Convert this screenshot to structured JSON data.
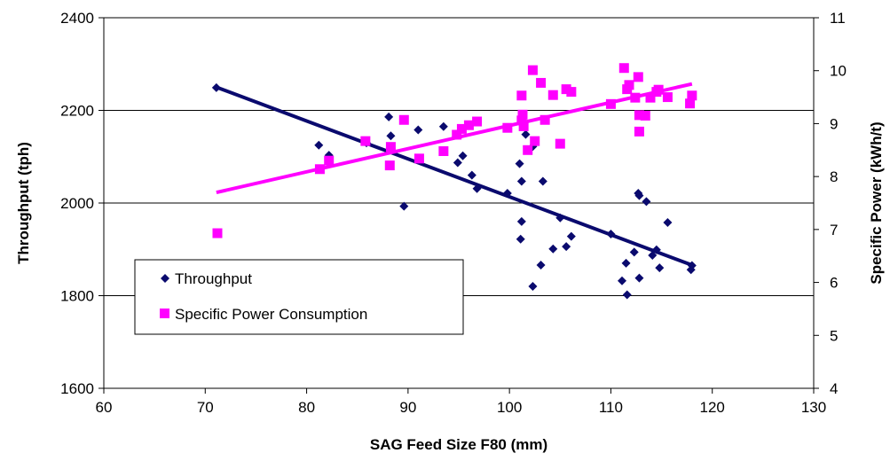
{
  "chart_data": {
    "type": "scatter",
    "title": "",
    "xlabel": "SAG Feed Size F80 (mm)",
    "ylabel": "Throughput (tph)",
    "y2label": "Specific Power (kWh/t)",
    "xlim": [
      60,
      130
    ],
    "ylim": [
      1600,
      2400
    ],
    "y2lim": [
      4,
      11
    ],
    "x_ticks": [
      "60",
      "70",
      "80",
      "90",
      "100",
      "110",
      "120",
      "130"
    ],
    "y_ticks": [
      "1600",
      "1800",
      "2000",
      "2200",
      "2400"
    ],
    "y2_ticks": [
      "4",
      "5",
      "6",
      "7",
      "8",
      "9",
      "10",
      "11"
    ],
    "grid": "horizontal major gridlines",
    "legend_placement": "lower-left inside plot",
    "series": [
      {
        "name": "Throughput",
        "axis": "left",
        "marker": "diamond",
        "color": "#0a0a6e",
        "points": [
          [
            71.1,
            2249
          ],
          [
            81.2,
            2125
          ],
          [
            82.2,
            2103
          ],
          [
            85.9,
            2130
          ],
          [
            88.1,
            2186
          ],
          [
            88.3,
            2145
          ],
          [
            89.6,
            1993
          ],
          [
            91.0,
            2158
          ],
          [
            93.5,
            2165
          ],
          [
            94.9,
            2087
          ],
          [
            95.4,
            2102
          ],
          [
            96.3,
            2060
          ],
          [
            96.8,
            2031
          ],
          [
            99.8,
            2021
          ],
          [
            101.0,
            2085
          ],
          [
            101.2,
            2047
          ],
          [
            101.1,
            1922
          ],
          [
            101.2,
            1960
          ],
          [
            101.6,
            2148
          ],
          [
            102.3,
            2122
          ],
          [
            102.3,
            1820
          ],
          [
            103.1,
            1866
          ],
          [
            103.3,
            2047
          ],
          [
            104.3,
            1901
          ],
          [
            105.0,
            1968
          ],
          [
            105.6,
            1906
          ],
          [
            106.1,
            1928
          ],
          [
            110.0,
            1933
          ],
          [
            111.1,
            1832
          ],
          [
            111.5,
            1870
          ],
          [
            111.6,
            1802
          ],
          [
            112.3,
            1894
          ],
          [
            112.7,
            2021
          ],
          [
            112.8,
            2016
          ],
          [
            112.8,
            1838
          ],
          [
            113.5,
            2003
          ],
          [
            114.1,
            1887
          ],
          [
            114.5,
            1899
          ],
          [
            114.8,
            1860
          ],
          [
            115.6,
            1958
          ],
          [
            117.9,
            1856
          ],
          [
            118.0,
            1865
          ]
        ],
        "trendline": [
          [
            71.1,
            2250
          ],
          [
            118.0,
            1866
          ]
        ]
      },
      {
        "name": "Specific Power Consumption",
        "axis": "right",
        "marker": "square",
        "color": "#ff00ff",
        "points": [
          [
            71.2,
            6.93
          ],
          [
            81.3,
            8.14
          ],
          [
            82.2,
            8.3
          ],
          [
            85.8,
            8.67
          ],
          [
            88.2,
            8.21
          ],
          [
            88.3,
            8.56
          ],
          [
            89.6,
            9.07
          ],
          [
            91.1,
            8.34
          ],
          [
            93.5,
            8.48
          ],
          [
            94.8,
            8.79
          ],
          [
            95.3,
            8.9
          ],
          [
            96.0,
            8.97
          ],
          [
            96.8,
            9.04
          ],
          [
            99.8,
            8.92
          ],
          [
            101.2,
            9.53
          ],
          [
            101.3,
            9.17
          ],
          [
            101.2,
            9.06
          ],
          [
            101.4,
            8.95
          ],
          [
            101.8,
            8.5
          ],
          [
            102.3,
            10.01
          ],
          [
            102.5,
            8.67
          ],
          [
            103.1,
            9.77
          ],
          [
            103.5,
            9.07
          ],
          [
            104.3,
            9.54
          ],
          [
            105.0,
            8.62
          ],
          [
            105.6,
            9.65
          ],
          [
            106.1,
            9.6
          ],
          [
            110.0,
            9.37
          ],
          [
            111.3,
            10.05
          ],
          [
            111.6,
            9.65
          ],
          [
            111.8,
            9.73
          ],
          [
            112.4,
            9.49
          ],
          [
            112.7,
            9.88
          ],
          [
            112.8,
            8.85
          ],
          [
            112.8,
            9.16
          ],
          [
            113.4,
            9.15
          ],
          [
            113.9,
            9.49
          ],
          [
            114.5,
            9.6
          ],
          [
            114.7,
            9.64
          ],
          [
            115.6,
            9.5
          ],
          [
            117.8,
            9.38
          ],
          [
            118.0,
            9.53
          ]
        ],
        "trendline": [
          [
            71.1,
            7.7
          ],
          [
            118.0,
            9.75
          ]
        ]
      }
    ]
  }
}
